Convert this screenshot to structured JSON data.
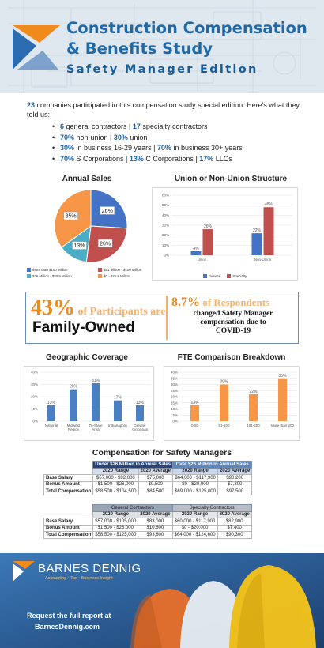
{
  "header": {
    "line1": "Construction Compensation",
    "line2": "& Benefits Study",
    "line3": "Safety Manager Edition"
  },
  "intro": {
    "count": "23",
    "text": " companies participated in this compensation study special edition. Here's what they told us:",
    "bullets": [
      {
        "b1": "6",
        "t1": " general contractors | ",
        "b2": "17",
        "t2": " specialty contractors",
        "b3": "",
        "t3": ""
      },
      {
        "b1": "70%",
        "t1": " non-union | ",
        "b2": "30%",
        "t2": " union",
        "b3": "",
        "t3": ""
      },
      {
        "b1": "30%",
        "t1": " in business 16-29 years | ",
        "b2": "70%",
        "t2": " in business 30+ years",
        "b3": "",
        "t3": ""
      },
      {
        "b1": "70%",
        "t1": " S Corporations | ",
        "b2": "13%",
        "t2": " C Corporations | ",
        "b3": "17%",
        "t3": " LLCs"
      }
    ]
  },
  "titles": {
    "annual_sales": "Annual Sales",
    "union": "Union or Non-Union Structure",
    "geo": "Geographic Coverage",
    "fte": "FTE Comparison Breakdown",
    "comp": "Compensation for Safety Managers"
  },
  "chart_data": [
    {
      "type": "pie",
      "title": "Annual Sales",
      "slices": [
        {
          "label": "More than $100 Million",
          "value": 26,
          "text": "26%",
          "color": "#4472c4"
        },
        {
          "label": "$51 Million - $100 Million",
          "value": 26,
          "text": "26%",
          "color": "#c0504d"
        },
        {
          "label": "$26 Million - $50.9 Million",
          "value": 13,
          "text": "13%",
          "color": "#4bacc6"
        },
        {
          "label": "$0 - $25.9 Million",
          "value": 35,
          "text": "35%",
          "color": "#f79646"
        }
      ]
    },
    {
      "type": "bar",
      "title": "Union or Non-Union Structure",
      "categories": [
        "Union",
        "Non-Union"
      ],
      "series": [
        {
          "name": "General",
          "values": [
            4,
            22
          ],
          "labels": [
            "4%",
            "22%"
          ],
          "color": "#4472c4"
        },
        {
          "name": "Specialty",
          "values": [
            26,
            48
          ],
          "labels": [
            "26%",
            "48%"
          ],
          "color": "#c0504d"
        }
      ],
      "yticks": [
        "0%",
        "10%",
        "20%",
        "30%",
        "40%",
        "50%",
        "60%"
      ],
      "ylim": [
        0,
        60
      ]
    },
    {
      "type": "bar",
      "title": "Geographic Coverage",
      "categories": [
        "National",
        "Midwest Region",
        "Tri-State Area",
        "Indianapolis",
        "Greater Cincinnati"
      ],
      "category_lines": [
        [
          "National"
        ],
        [
          "Midwest",
          "Region"
        ],
        [
          "Tri-State",
          "Area"
        ],
        [
          "Indianapolis"
        ],
        [
          "Greater",
          "Cincinnati"
        ]
      ],
      "series": [
        {
          "name": "",
          "values": [
            13,
            26,
            31,
            17,
            13
          ],
          "labels": [
            "13%",
            "26%",
            "31%",
            "17%",
            "13%"
          ],
          "color": "#4a7fc1"
        }
      ],
      "yticks": [
        "0%",
        "10%",
        "20%",
        "30%",
        "40%"
      ],
      "ylim": [
        0,
        40
      ]
    },
    {
      "type": "bar",
      "title": "FTE Comparison Breakdown",
      "categories": [
        "0-50",
        "51-100",
        "101-200",
        "More than 200"
      ],
      "series": [
        {
          "name": "",
          "values": [
            13,
            30,
            22,
            35
          ],
          "labels": [
            "13%",
            "30%",
            "22%",
            "35%"
          ],
          "color": "#f79646"
        }
      ],
      "yticks": [
        "0%",
        "5%",
        "10%",
        "15%",
        "20%",
        "25%",
        "30%",
        "35%",
        "40%"
      ],
      "ylim": [
        0,
        40
      ]
    }
  ],
  "highlight": {
    "pct1": "43%",
    "of1": " of Participants are",
    "family": "Family-Owned",
    "pct2": "8.7%",
    "of2": " of Respondents",
    "line1": "changed Safety Manager",
    "line2": "compensation due to",
    "line3": "COVID-19"
  },
  "table1": {
    "group1": "Under $26 Million in Annual Sales",
    "group2": "Over $26 Million in Annual Sales",
    "cols": [
      "2020 Range",
      "2020 Average",
      "2020 Range",
      "2020 Average"
    ],
    "rows": [
      [
        "Base Salary",
        "$57,000 - $92,000",
        "$75,000",
        "$64,000 - $117,900",
        "$90,200"
      ],
      [
        "Bonus Amount",
        "$1,500 - $28,000",
        "$9,500",
        "$0 - $20,000",
        "$7,300"
      ],
      [
        "Total Compensation",
        "$58,500 - $104,500",
        "$84,500",
        "$69,000 - $125,000",
        "$97,500"
      ]
    ]
  },
  "table2": {
    "group1": "General Contractors",
    "group2": "Specialty Contractors",
    "cols": [
      "2020 Range",
      "2020 Average",
      "2020 Range",
      "2020 Average"
    ],
    "rows": [
      [
        "Base Salary",
        "$57,000 - $105,000",
        "$83,000",
        "$60,000 - $117,900",
        "$82,900"
      ],
      [
        "Bonus Amount",
        "$1,500 - $28,000",
        "$10,600",
        "$0 - $20,000",
        "$7,400"
      ],
      [
        "Total Compensation",
        "$58,500 - $125,000",
        "$93,600",
        "$64,000 - $124,600",
        "$90,300"
      ]
    ]
  },
  "footer": {
    "brand": "BARNES DENNIG",
    "tagline": "Accounting • Tax • Business Insight",
    "request": "Request the full report at",
    "url": "BarnesDennig.com"
  },
  "colors": {
    "blue": "#1f6aa6",
    "navy": "#23406b",
    "orange": "#f08a1c"
  }
}
